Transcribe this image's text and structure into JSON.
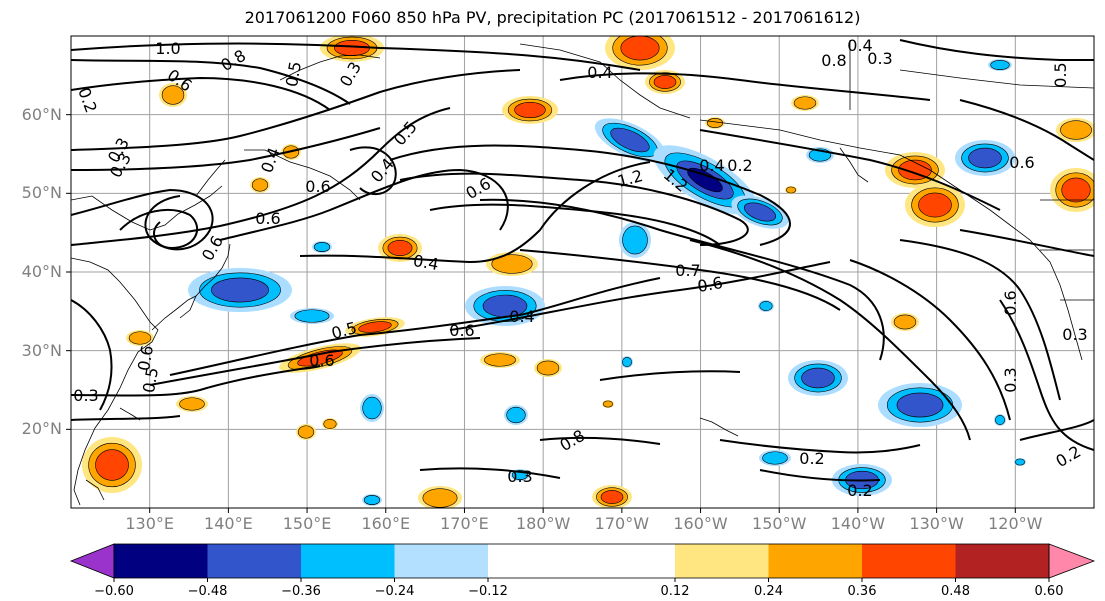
{
  "title": "2017061200 F060 850 hPa PV, precipitation PC (2017061512 - 2017061612)",
  "map": {
    "projection": "equirectangular",
    "lon_range_east": [
      120,
      250
    ],
    "lat_range": [
      10,
      70
    ],
    "lat_labels": [
      "20°N",
      "30°N",
      "40°N",
      "50°N",
      "60°N"
    ],
    "lon_labels": [
      "130°E",
      "140°E",
      "150°E",
      "160°E",
      "170°E",
      "180°W",
      "170°W",
      "160°W",
      "150°W",
      "140°W",
      "130°W",
      "120°W"
    ],
    "grid": true,
    "contour_color": "#000000",
    "contour_labels": [
      "1.0",
      "0.8",
      "0.6",
      "0.5",
      "0.3",
      "0.2",
      "0.3",
      "0.4",
      "0.6",
      "0.4",
      "0.5",
      "0.6",
      "0.6",
      "0.4",
      "0.6",
      "1.2",
      "1.2",
      "0.4",
      "0.6",
      "0.7",
      "0.6",
      "0.4",
      "0.5",
      "0.6",
      "0.3",
      "0.6",
      "0.5",
      "0.3",
      "0.3",
      "0.8",
      "0.2",
      "0.3",
      "0.2",
      "0.2",
      "0.2",
      "0.4",
      "0.8",
      "0.3",
      "0.4",
      "0.6",
      "0.5",
      "0.6",
      "0.3"
    ],
    "positive_anomaly_colors": [
      "#ffe680",
      "#ffa500",
      "#ff4500",
      "#b22222",
      "#ff88aa"
    ],
    "negative_anomaly_colors": [
      "#aaddff",
      "#00bfff",
      "#3355cc",
      "#000080",
      "#9933cc"
    ]
  },
  "colorbar": {
    "ticks": [
      "−0.60",
      "−0.48",
      "−0.36",
      "−0.24",
      "−0.12",
      "0.12",
      "0.24",
      "0.36",
      "0.48",
      "0.60"
    ],
    "tick_values": [
      -0.6,
      -0.48,
      -0.36,
      -0.24,
      -0.12,
      0.12,
      0.24,
      0.36,
      0.48,
      0.6
    ],
    "colors": [
      "#9933cc",
      "#000080",
      "#3355cc",
      "#00bfff",
      "#b3e0ff",
      "#ffffff",
      "#ffe680",
      "#ffa500",
      "#ff4500",
      "#b22222",
      "#ff88aa"
    ],
    "extend": "both"
  }
}
